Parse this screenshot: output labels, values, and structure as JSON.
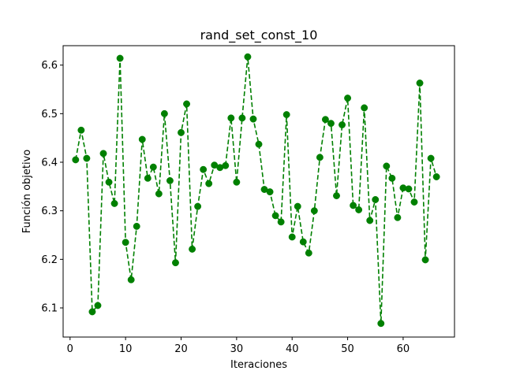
{
  "chart_data": {
    "type": "line",
    "title": "rand_set_const_10",
    "xlabel": "Iteraciones",
    "ylabel": "Función objetivo",
    "xlim": [
      -1.25,
      69.25
    ],
    "ylim": [
      6.04,
      6.64
    ],
    "xticks": [
      0,
      10,
      20,
      30,
      40,
      50,
      60
    ],
    "xtick_labels": [
      "0",
      "10",
      "20",
      "30",
      "40",
      "50",
      "60"
    ],
    "yticks": [
      6.1,
      6.2,
      6.3,
      6.4,
      6.5,
      6.6
    ],
    "ytick_labels": [
      "6.1",
      "6.2",
      "6.3",
      "6.4",
      "6.5",
      "6.6"
    ],
    "grid": false,
    "series": [
      {
        "color": "#008000",
        "line_style": "dashed",
        "marker": "circle",
        "x": [
          1,
          2,
          3,
          4,
          5,
          6,
          7,
          8,
          9,
          10,
          11,
          12,
          13,
          14,
          15,
          16,
          17,
          18,
          19,
          20,
          21,
          22,
          23,
          24,
          25,
          26,
          27,
          28,
          29,
          30,
          31,
          32,
          33,
          34,
          35,
          36,
          37,
          38,
          39,
          40,
          41,
          42,
          43,
          44,
          45,
          46,
          47,
          48,
          49,
          50,
          51,
          52,
          53,
          54,
          55,
          56,
          57,
          58,
          59,
          60,
          61,
          62,
          63,
          64,
          65,
          66
        ],
        "y": [
          6.405,
          6.466,
          6.408,
          6.092,
          6.105,
          6.418,
          6.359,
          6.315,
          6.614,
          6.235,
          6.158,
          6.268,
          6.447,
          6.367,
          6.39,
          6.335,
          6.5,
          6.362,
          6.193,
          6.461,
          6.52,
          6.221,
          6.309,
          6.385,
          6.356,
          6.394,
          6.389,
          6.393,
          6.491,
          6.359,
          6.491,
          6.617,
          6.489,
          6.437,
          6.344,
          6.339,
          6.29,
          6.277,
          6.498,
          6.246,
          6.309,
          6.236,
          6.213,
          6.3,
          6.41,
          6.488,
          6.48,
          6.331,
          6.477,
          6.532,
          6.311,
          6.302,
          6.512,
          6.28,
          6.323,
          6.068,
          6.392,
          6.367,
          6.286,
          6.347,
          6.345,
          6.318,
          6.563,
          6.199,
          6.408,
          6.37
        ]
      }
    ]
  }
}
